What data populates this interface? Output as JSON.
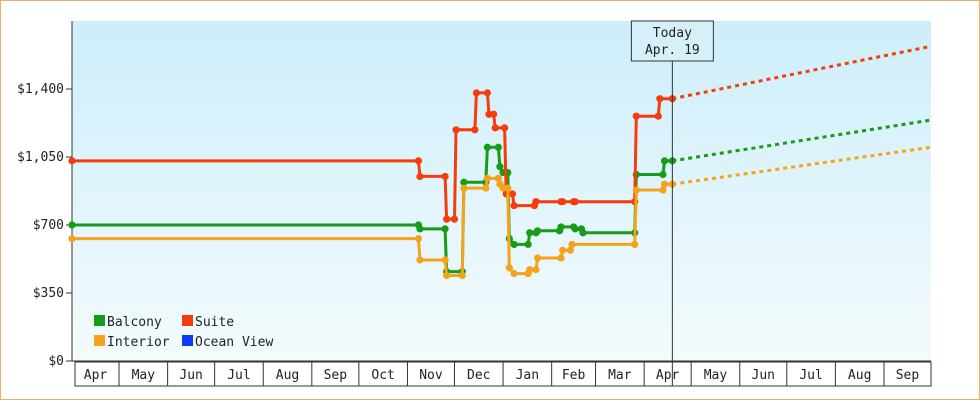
{
  "chart_data": {
    "type": "line",
    "title": "",
    "xlabel": "",
    "ylabel": "",
    "ylim": [
      0,
      1750
    ],
    "y_ticks": [
      {
        "value": 0,
        "label": "$0"
      },
      {
        "value": 350,
        "label": "$350"
      },
      {
        "value": 700,
        "label": "$700"
      },
      {
        "value": 1050,
        "label": "$1,050"
      },
      {
        "value": 1400,
        "label": "$1,400"
      }
    ],
    "x_range": [
      "2025-04-01",
      "2026-09-30"
    ],
    "months": [
      {
        "label": "Apr",
        "start": "2025-04-01"
      },
      {
        "label": "May",
        "start": "2025-05-01"
      },
      {
        "label": "Jun",
        "start": "2025-06-01"
      },
      {
        "label": "Jul",
        "start": "2025-07-01"
      },
      {
        "label": "Aug",
        "start": "2025-08-01"
      },
      {
        "label": "Sep",
        "start": "2025-09-01"
      },
      {
        "label": "Oct",
        "start": "2025-10-01"
      },
      {
        "label": "Nov",
        "start": "2025-11-01"
      },
      {
        "label": "Dec",
        "start": "2025-12-01"
      },
      {
        "label": "Jan",
        "start": "2026-01-01"
      },
      {
        "label": "Feb",
        "start": "2026-02-01"
      },
      {
        "label": "Mar",
        "start": "2026-03-01"
      },
      {
        "label": "Apr",
        "start": "2026-04-01"
      },
      {
        "label": "May",
        "start": "2026-05-01"
      },
      {
        "label": "Jun",
        "start": "2026-06-01"
      },
      {
        "label": "Jul",
        "start": "2026-07-01"
      },
      {
        "label": "Aug",
        "start": "2026-08-01"
      },
      {
        "label": "Sep",
        "start": "2026-09-01"
      },
      {
        "label": "",
        "start": "2026-10-01"
      }
    ],
    "today": {
      "date": "2026-04-19",
      "label_line1": "Today",
      "label_line2": "Apr. 19"
    },
    "grid": false,
    "legend_position": "bottom-left",
    "series": [
      {
        "name": "Balcony",
        "color": "#169c16",
        "points": [
          [
            "2025-04-01",
            700
          ],
          [
            "2025-11-08",
            700
          ],
          [
            "2025-11-09",
            680
          ],
          [
            "2025-11-25",
            680
          ],
          [
            "2025-11-26",
            460
          ],
          [
            "2025-12-06",
            460
          ],
          [
            "2025-12-07",
            920
          ],
          [
            "2025-12-21",
            920
          ],
          [
            "2025-12-22",
            1100
          ],
          [
            "2025-12-29",
            1100
          ],
          [
            "2025-12-30",
            1000
          ],
          [
            "2026-01-01",
            970
          ],
          [
            "2026-01-04",
            970
          ],
          [
            "2026-01-05",
            630
          ],
          [
            "2026-01-08",
            600
          ],
          [
            "2026-01-17",
            600
          ],
          [
            "2026-01-18",
            660
          ],
          [
            "2026-01-22",
            660
          ],
          [
            "2026-01-23",
            670
          ],
          [
            "2026-02-06",
            670
          ],
          [
            "2026-02-07",
            690
          ],
          [
            "2026-02-15",
            690
          ],
          [
            "2026-02-16",
            680
          ],
          [
            "2026-02-20",
            680
          ],
          [
            "2026-02-21",
            660
          ],
          [
            "2026-03-26",
            660
          ],
          [
            "2026-03-27",
            960
          ],
          [
            "2026-04-13",
            960
          ],
          [
            "2026-04-14",
            1030
          ],
          [
            "2026-04-19",
            1030
          ]
        ],
        "projection": [
          [
            "2026-04-19",
            1030
          ],
          [
            "2026-10-01",
            1240
          ]
        ]
      },
      {
        "name": "Suite",
        "color": "#f43c0c",
        "points": [
          [
            "2025-04-01",
            1030
          ],
          [
            "2025-11-08",
            1030
          ],
          [
            "2025-11-09",
            950
          ],
          [
            "2025-11-25",
            950
          ],
          [
            "2025-11-26",
            730
          ],
          [
            "2025-12-01",
            730
          ],
          [
            "2025-12-02",
            1190
          ],
          [
            "2025-12-14",
            1190
          ],
          [
            "2025-12-15",
            1380
          ],
          [
            "2025-12-22",
            1380
          ],
          [
            "2025-12-23",
            1270
          ],
          [
            "2025-12-26",
            1270
          ],
          [
            "2025-12-27",
            1200
          ],
          [
            "2026-01-02",
            1200
          ],
          [
            "2026-01-03",
            860
          ],
          [
            "2026-01-07",
            860
          ],
          [
            "2026-01-08",
            800
          ],
          [
            "2026-01-21",
            800
          ],
          [
            "2026-01-22",
            820
          ],
          [
            "2026-02-07",
            820
          ],
          [
            "2026-02-08",
            820
          ],
          [
            "2026-02-15",
            820
          ],
          [
            "2026-02-16",
            820
          ],
          [
            "2026-03-26",
            820
          ],
          [
            "2026-03-27",
            1260
          ],
          [
            "2026-04-10",
            1260
          ],
          [
            "2026-04-11",
            1350
          ],
          [
            "2026-04-19",
            1350
          ]
        ],
        "projection": [
          [
            "2026-04-19",
            1350
          ],
          [
            "2026-10-01",
            1620
          ]
        ]
      },
      {
        "name": "Interior",
        "color": "#f4a41c",
        "points": [
          [
            "2025-04-01",
            630
          ],
          [
            "2025-11-08",
            630
          ],
          [
            "2025-11-09",
            520
          ],
          [
            "2025-11-25",
            520
          ],
          [
            "2025-11-26",
            440
          ],
          [
            "2025-12-06",
            440
          ],
          [
            "2025-12-07",
            890
          ],
          [
            "2025-12-21",
            890
          ],
          [
            "2025-12-22",
            940
          ],
          [
            "2025-12-29",
            940
          ],
          [
            "2025-12-30",
            910
          ],
          [
            "2026-01-01",
            890
          ],
          [
            "2026-01-04",
            890
          ],
          [
            "2026-01-05",
            480
          ],
          [
            "2026-01-08",
            450
          ],
          [
            "2026-01-17",
            450
          ],
          [
            "2026-01-18",
            470
          ],
          [
            "2026-01-22",
            470
          ],
          [
            "2026-01-23",
            530
          ],
          [
            "2026-02-07",
            530
          ],
          [
            "2026-02-08",
            570
          ],
          [
            "2026-02-13",
            570
          ],
          [
            "2026-02-14",
            600
          ],
          [
            "2026-03-26",
            600
          ],
          [
            "2026-03-27",
            880
          ],
          [
            "2026-04-13",
            880
          ],
          [
            "2026-04-14",
            910
          ],
          [
            "2026-04-19",
            910
          ]
        ],
        "projection": [
          [
            "2026-04-19",
            910
          ],
          [
            "2026-10-01",
            1100
          ]
        ]
      },
      {
        "name": "Ocean View",
        "color": "#0c3cf4",
        "points": [],
        "projection": []
      }
    ]
  }
}
